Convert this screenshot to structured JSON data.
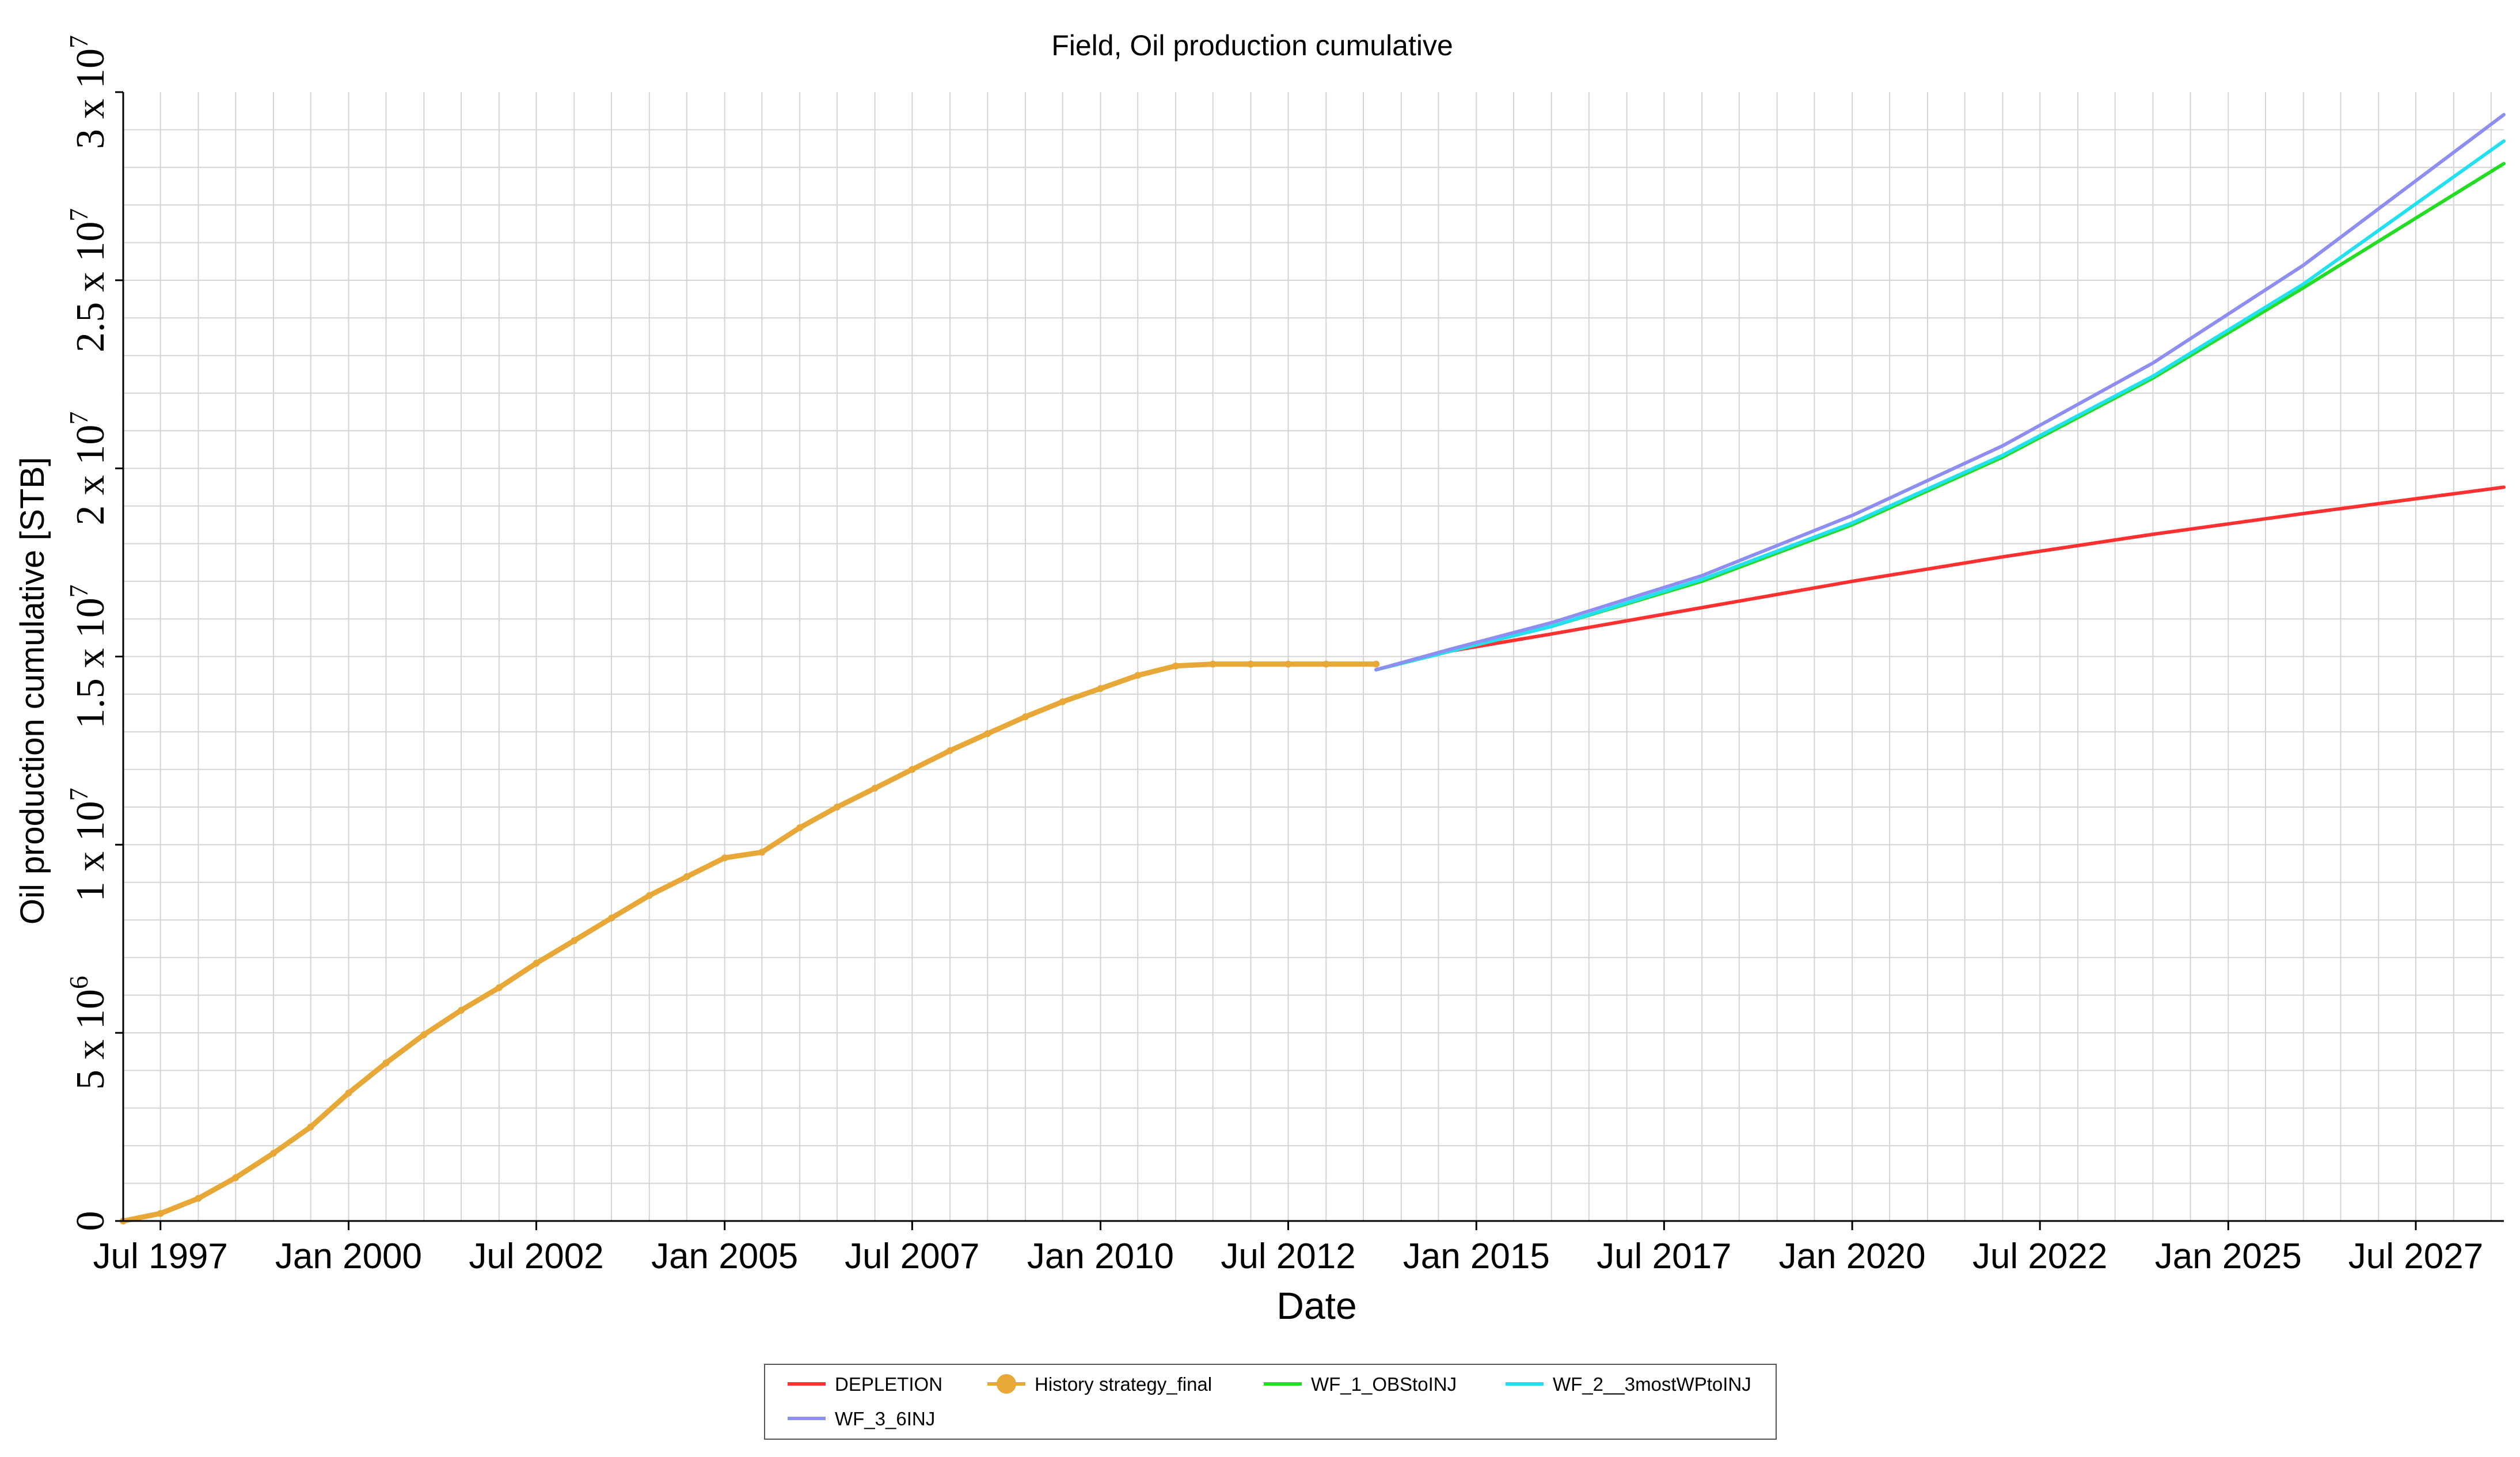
{
  "chart_data": {
    "type": "line",
    "title": "Field, Oil production cumulative",
    "xlabel": "Date",
    "ylabel": "Oil production cumulative [STB]",
    "x_type": "date",
    "xlim": [
      "1997-01-01",
      "2028-09-01"
    ],
    "ylim": [
      0,
      30000000
    ],
    "grid": true,
    "legend_position": "bottom-center",
    "x_ticks": [
      {
        "date": "1997-07-01",
        "label": "Jul 1997"
      },
      {
        "date": "2000-01-01",
        "label": "Jan 2000"
      },
      {
        "date": "2002-07-01",
        "label": "Jul 2002"
      },
      {
        "date": "2005-01-01",
        "label": "Jan 2005"
      },
      {
        "date": "2007-07-01",
        "label": "Jul 2007"
      },
      {
        "date": "2010-01-01",
        "label": "Jan 2010"
      },
      {
        "date": "2012-07-01",
        "label": "Jul 2012"
      },
      {
        "date": "2015-01-01",
        "label": "Jan 2015"
      },
      {
        "date": "2017-07-01",
        "label": "Jul 2017"
      },
      {
        "date": "2020-01-01",
        "label": "Jan 2020"
      },
      {
        "date": "2022-07-01",
        "label": "Jul 2022"
      },
      {
        "date": "2025-01-01",
        "label": "Jan 2025"
      },
      {
        "date": "2027-07-01",
        "label": "Jul 2027"
      }
    ],
    "y_ticks": [
      {
        "value": 0,
        "mant": "0",
        "exp": ""
      },
      {
        "value": 5000000,
        "mant": "5 x 10",
        "exp": "6"
      },
      {
        "value": 10000000,
        "mant": "1 x 10",
        "exp": "7"
      },
      {
        "value": 15000000,
        "mant": "1.5 x 10",
        "exp": "7"
      },
      {
        "value": 20000000,
        "mant": "2 x 10",
        "exp": "7"
      },
      {
        "value": 25000000,
        "mant": "2.5 x 10",
        "exp": "7"
      },
      {
        "value": 30000000,
        "mant": "3 x 10",
        "exp": "7"
      }
    ],
    "series": [
      {
        "name": "DEPLETION",
        "color": "#ff3030",
        "marker": "none",
        "x": [
          "2013-09-01",
          "2014-09-01",
          "2016-01-01",
          "2018-01-01",
          "2020-01-01",
          "2022-01-01",
          "2024-01-01",
          "2026-01-01",
          "2028-09-01"
        ],
        "y": [
          14650000,
          15150000,
          15600000,
          16300000,
          17000000,
          17650000,
          18250000,
          18800000,
          19500000
        ]
      },
      {
        "name": "History strategy_final",
        "color": "#e8a838",
        "marker": "circle",
        "x": [
          "1997-01-01",
          "1997-07-01",
          "1998-01-01",
          "1998-07-01",
          "1999-01-01",
          "1999-07-01",
          "2000-01-01",
          "2000-07-01",
          "2001-01-01",
          "2001-07-01",
          "2002-01-01",
          "2002-07-01",
          "2003-01-01",
          "2003-07-01",
          "2004-01-01",
          "2004-07-01",
          "2005-01-01",
          "2005-07-01",
          "2006-01-01",
          "2006-07-01",
          "2007-01-01",
          "2007-07-01",
          "2008-01-01",
          "2008-07-01",
          "2009-01-01",
          "2009-07-01",
          "2010-01-01",
          "2010-07-01",
          "2011-01-01",
          "2011-07-01",
          "2012-01-01",
          "2012-07-01",
          "2013-01-01",
          "2013-09-01"
        ],
        "y": [
          0,
          200000,
          600000,
          1150000,
          1800000,
          2500000,
          3400000,
          4200000,
          4950000,
          5600000,
          6200000,
          6850000,
          7450000,
          8050000,
          8650000,
          9150000,
          9650000,
          9800000,
          10450000,
          11000000,
          11500000,
          12000000,
          12500000,
          12950000,
          13400000,
          13800000,
          14150000,
          14500000,
          14750000,
          14800000,
          14800000,
          14800000,
          14800000,
          14800000
        ]
      },
      {
        "name": "WF_1_OBStoINJ",
        "color": "#22dd22",
        "marker": "none",
        "x": [
          "2013-09-01",
          "2014-09-01",
          "2016-01-01",
          "2018-01-01",
          "2020-01-01",
          "2022-01-01",
          "2024-01-01",
          "2026-01-01",
          "2028-09-01"
        ],
        "y": [
          14650000,
          15150000,
          15800000,
          17000000,
          18500000,
          20300000,
          22400000,
          24800000,
          28100000
        ]
      },
      {
        "name": "WF_2__3mostWPtoINJ",
        "color": "#22e0f0",
        "marker": "none",
        "x": [
          "2013-09-01",
          "2014-09-01",
          "2016-01-01",
          "2018-01-01",
          "2020-01-01",
          "2022-01-01",
          "2024-01-01",
          "2026-01-01",
          "2028-09-01"
        ],
        "y": [
          14650000,
          15150000,
          15800000,
          17050000,
          18550000,
          20350000,
          22450000,
          24900000,
          28700000
        ]
      },
      {
        "name": "WF_3_6INJ",
        "color": "#8e8ef0",
        "marker": "none",
        "x": [
          "2013-09-01",
          "2014-09-01",
          "2016-01-01",
          "2018-01-01",
          "2020-01-01",
          "2022-01-01",
          "2024-01-01",
          "2026-01-01",
          "2028-09-01"
        ],
        "y": [
          14650000,
          15200000,
          15900000,
          17150000,
          18750000,
          20600000,
          22800000,
          25400000,
          29400000
        ]
      }
    ]
  }
}
